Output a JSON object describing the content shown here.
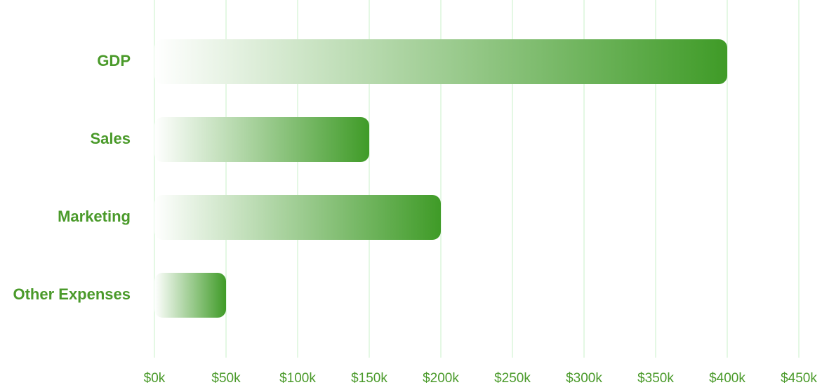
{
  "chart_data": {
    "type": "bar",
    "orientation": "horizontal",
    "categories": [
      "GDP",
      "Sales",
      "Marketing",
      "Other Expenses"
    ],
    "values": [
      400000,
      150000,
      200000,
      50000
    ],
    "x_ticks": [
      0,
      50000,
      100000,
      150000,
      200000,
      250000,
      300000,
      350000,
      400000,
      450000
    ],
    "x_tick_labels": [
      "$0k",
      "$50k",
      "$100k",
      "$150k",
      "$200k",
      "$250k",
      "$300k",
      "$350k",
      "$400k",
      "$450k"
    ],
    "xlim": [
      0,
      450000
    ],
    "title": "",
    "xlabel": "",
    "ylabel": "",
    "grid": "vertical",
    "legend": "none"
  },
  "colors": {
    "bar_end": "#3f9b27",
    "bar_start": "#ffffff",
    "label": "#4a9a2a",
    "grid": "#dcf5dc"
  }
}
